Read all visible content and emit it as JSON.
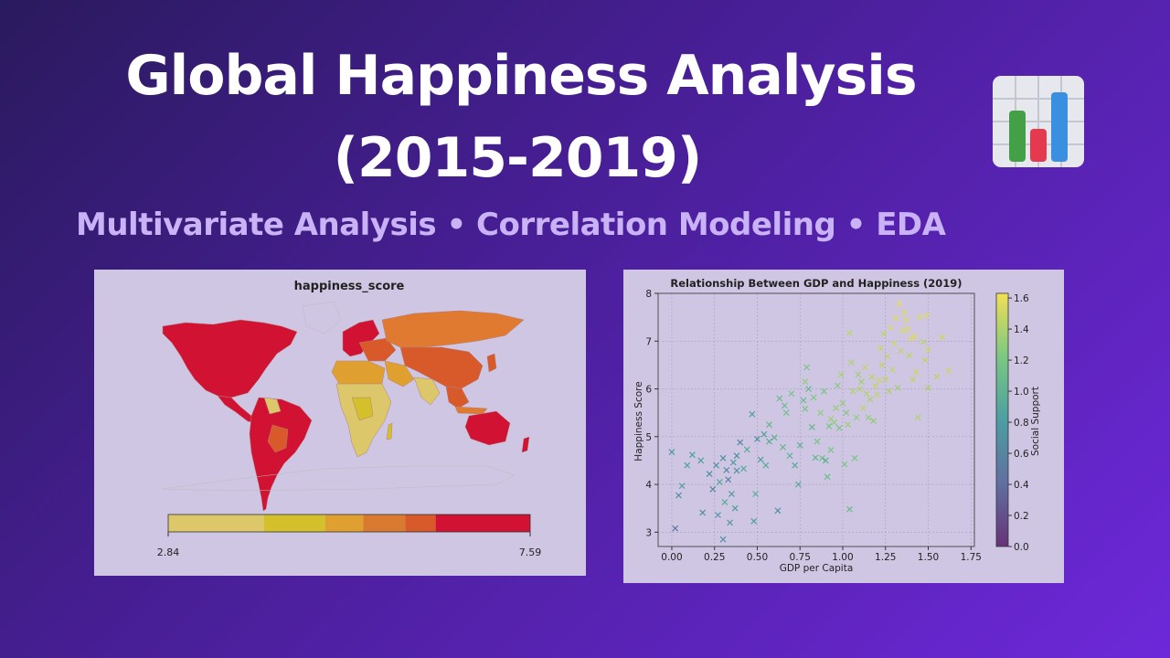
{
  "slide": {
    "title_line1": "Global Happiness Analysis",
    "title_line2": "(2015-2019)",
    "subtitle": "Multivariate Analysis • Correlation Modeling • EDA",
    "icon": "bar-chart-icon",
    "icon_colors": [
      "#43a047",
      "#e53950",
      "#3b8fe0"
    ]
  },
  "chart_data": [
    {
      "type": "choropleth",
      "title": "happiness_score",
      "colorbar": {
        "min_label": "2.84",
        "max_label": "7.59",
        "range": [
          2.84,
          7.59
        ],
        "bins": [
          {
            "from": 2.84,
            "to": 4.1,
            "color": "#dcc86a"
          },
          {
            "from": 4.1,
            "to": 4.9,
            "color": "#d4c02a"
          },
          {
            "from": 4.9,
            "to": 5.4,
            "color": "#e0a030"
          },
          {
            "from": 5.4,
            "to": 5.95,
            "color": "#d97a30"
          },
          {
            "from": 5.95,
            "to": 6.35,
            "color": "#d85a2a"
          },
          {
            "from": 6.35,
            "to": 7.59,
            "color": "#d21232"
          }
        ]
      },
      "regions_colors": {
        "high": "#d21232",
        "upper_mid": "#d85a2a",
        "mid": "#e07a30",
        "low": "#dcc86a",
        "lowest": "#d4c02a"
      }
    },
    {
      "type": "scatter",
      "title": "Relationship Between GDP and Happiness (2019)",
      "xlabel": "GDP per Capita",
      "ylabel": "Happiness Score",
      "colorbar_label": "Social Support",
      "xlim": [
        -0.08,
        1.77
      ],
      "ylim": [
        2.7,
        8.0
      ],
      "xticks": [
        "0.00",
        "0.25",
        "0.50",
        "0.75",
        "1.00",
        "1.25",
        "1.50",
        "1.75"
      ],
      "yticks": [
        "3",
        "4",
        "5",
        "6",
        "7",
        "8"
      ],
      "cticks": [
        "0.0",
        "0.2",
        "0.4",
        "0.6",
        "0.8",
        "1.0",
        "1.2",
        "1.4",
        "1.6"
      ],
      "clim": [
        0.0,
        1.63
      ],
      "grid": true,
      "marker": "x",
      "points": [
        [
          0.02,
          3.08,
          0.45
        ],
        [
          0.0,
          4.68,
          0.75
        ],
        [
          0.04,
          3.77,
          0.7
        ],
        [
          0.06,
          3.97,
          0.8
        ],
        [
          0.09,
          4.4,
          0.85
        ],
        [
          0.12,
          4.62,
          0.8
        ],
        [
          0.18,
          3.41,
          0.7
        ],
        [
          0.17,
          4.5,
          0.85
        ],
        [
          0.22,
          4.22,
          0.65
        ],
        [
          0.24,
          3.9,
          0.6
        ],
        [
          0.26,
          4.4,
          0.7
        ],
        [
          0.27,
          3.36,
          0.75
        ],
        [
          0.28,
          4.05,
          0.9
        ],
        [
          0.3,
          2.85,
          0.7
        ],
        [
          0.3,
          4.55,
          0.7
        ],
        [
          0.31,
          3.63,
          0.95
        ],
        [
          0.32,
          4.3,
          0.6
        ],
        [
          0.33,
          4.1,
          0.55
        ],
        [
          0.34,
          3.2,
          0.7
        ],
        [
          0.35,
          3.8,
          0.75
        ],
        [
          0.36,
          4.46,
          0.8
        ],
        [
          0.37,
          3.5,
          0.8
        ],
        [
          0.38,
          4.6,
          0.7
        ],
        [
          0.38,
          4.29,
          0.75
        ],
        [
          0.4,
          4.88,
          0.6
        ],
        [
          0.42,
          4.33,
          0.9
        ],
        [
          0.44,
          4.73,
          0.95
        ],
        [
          0.47,
          5.47,
          0.8
        ],
        [
          0.49,
          3.8,
          0.95
        ],
        [
          0.48,
          3.23,
          0.8
        ],
        [
          0.5,
          4.95,
          0.7
        ],
        [
          0.52,
          4.52,
          0.8
        ],
        [
          0.54,
          5.05,
          0.85
        ],
        [
          0.55,
          4.4,
          0.95
        ],
        [
          0.57,
          4.9,
          0.95
        ],
        [
          0.57,
          5.25,
          1.05
        ],
        [
          0.6,
          4.98,
          1.0
        ],
        [
          0.62,
          3.45,
          0.7
        ],
        [
          0.63,
          5.8,
          1.1
        ],
        [
          0.65,
          4.78,
          1.05
        ],
        [
          0.66,
          5.65,
          1.1
        ],
        [
          0.67,
          5.5,
          1.15
        ],
        [
          0.69,
          4.6,
          1.0
        ],
        [
          0.7,
          5.9,
          1.2
        ],
        [
          0.72,
          4.4,
          0.9
        ],
        [
          0.74,
          4.0,
          0.95
        ],
        [
          0.75,
          4.82,
          1.0
        ],
        [
          0.77,
          5.76,
          1.1
        ],
        [
          0.78,
          6.15,
          1.3
        ],
        [
          0.79,
          6.45,
          1.2
        ],
        [
          0.8,
          6.0,
          1.1
        ],
        [
          0.82,
          5.2,
          1.05
        ],
        [
          0.83,
          5.82,
          1.25
        ],
        [
          0.84,
          4.56,
          1.05
        ],
        [
          0.85,
          4.9,
          1.2
        ],
        [
          0.87,
          5.5,
          1.3
        ],
        [
          0.88,
          4.55,
          1.15
        ],
        [
          0.89,
          5.95,
          1.2
        ],
        [
          0.9,
          4.5,
          1.0
        ],
        [
          0.91,
          4.16,
          1.1
        ],
        [
          0.92,
          5.22,
          1.2
        ],
        [
          0.93,
          4.72,
          1.2
        ],
        [
          0.95,
          5.3,
          1.3
        ],
        [
          0.96,
          5.6,
          1.3
        ],
        [
          0.97,
          6.07,
          1.25
        ],
        [
          0.98,
          5.18,
          1.2
        ],
        [
          0.99,
          6.3,
          1.4
        ],
        [
          1.0,
          5.7,
          1.3
        ],
        [
          1.01,
          4.42,
          1.2
        ],
        [
          1.02,
          5.5,
          1.25
        ],
        [
          1.03,
          5.25,
          1.35
        ],
        [
          1.04,
          3.48,
          1.1
        ],
        [
          1.05,
          6.55,
          1.4
        ],
        [
          1.06,
          5.95,
          1.4
        ],
        [
          1.07,
          4.55,
          1.2
        ],
        [
          1.08,
          5.4,
          1.3
        ],
        [
          1.09,
          6.3,
          1.35
        ],
        [
          1.1,
          6.0,
          1.4
        ],
        [
          1.11,
          6.15,
          1.35
        ],
        [
          1.12,
          5.6,
          1.45
        ],
        [
          1.13,
          6.45,
          1.45
        ],
        [
          1.14,
          5.9,
          1.4
        ],
        [
          1.15,
          5.4,
          1.3
        ],
        [
          1.16,
          5.78,
          1.4
        ],
        [
          1.17,
          6.25,
          1.45
        ],
        [
          1.18,
          5.33,
          1.3
        ],
        [
          1.19,
          6.06,
          1.45
        ],
        [
          1.2,
          5.88,
          1.45
        ],
        [
          1.21,
          6.18,
          1.5
        ],
        [
          1.22,
          6.85,
          1.5
        ],
        [
          1.23,
          6.5,
          1.45
        ],
        [
          1.24,
          7.15,
          1.45
        ],
        [
          1.25,
          6.2,
          1.45
        ],
        [
          1.26,
          6.68,
          1.45
        ],
        [
          1.27,
          5.95,
          1.4
        ],
        [
          1.28,
          7.28,
          1.55
        ],
        [
          1.29,
          6.4,
          1.45
        ],
        [
          1.3,
          6.95,
          1.5
        ],
        [
          1.31,
          7.48,
          1.55
        ],
        [
          1.32,
          6.02,
          1.35
        ],
        [
          1.33,
          7.78,
          1.6
        ],
        [
          1.34,
          6.8,
          1.45
        ],
        [
          1.35,
          7.22,
          1.55
        ],
        [
          1.36,
          7.6,
          1.55
        ],
        [
          1.37,
          7.44,
          1.55
        ],
        [
          1.38,
          7.25,
          1.55
        ],
        [
          1.39,
          6.7,
          1.45
        ],
        [
          1.4,
          7.05,
          1.55
        ],
        [
          1.41,
          6.2,
          1.45
        ],
        [
          1.42,
          7.1,
          1.55
        ],
        [
          1.43,
          6.35,
          1.5
        ],
        [
          1.44,
          5.4,
          1.4
        ],
        [
          1.45,
          7.5,
          1.55
        ],
        [
          1.47,
          6.98,
          1.45
        ],
        [
          1.48,
          6.6,
          1.45
        ],
        [
          1.49,
          7.54,
          1.55
        ],
        [
          1.5,
          6.82,
          1.5
        ],
        [
          1.5,
          6.02,
          1.4
        ],
        [
          1.55,
          6.26,
          1.45
        ],
        [
          1.58,
          7.08,
          1.5
        ],
        [
          1.62,
          6.38,
          1.5
        ],
        [
          1.04,
          7.17,
          1.45
        ],
        [
          0.93,
          5.37,
          1.35
        ],
        [
          0.78,
          5.58,
          1.2
        ]
      ]
    }
  ]
}
